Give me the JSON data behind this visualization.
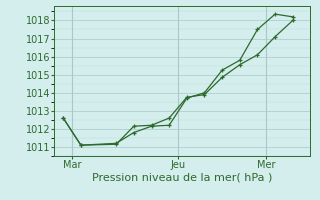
{
  "line1_x": [
    0,
    1,
    3,
    4,
    5,
    6,
    7,
    8,
    9,
    10,
    11,
    12,
    13
  ],
  "line1_y": [
    1012.6,
    1011.1,
    1011.2,
    1011.8,
    1012.15,
    1012.2,
    1013.7,
    1014.0,
    1015.25,
    1015.8,
    1017.5,
    1018.35,
    1018.2
  ],
  "line2_x": [
    0,
    1,
    3,
    4,
    5,
    6,
    7,
    8,
    9,
    10,
    11,
    12,
    13
  ],
  "line2_y": [
    1012.6,
    1011.1,
    1011.15,
    1012.15,
    1012.2,
    1012.6,
    1013.75,
    1013.9,
    1014.85,
    1015.55,
    1016.1,
    1017.1,
    1018.0
  ],
  "color": "#2d6a2d",
  "bg_color": "#d4eded",
  "grid_color_major": "#aac8c8",
  "grid_color_minor": "#c0dcdc",
  "xlabel": "Pression niveau de la mer( hPa )",
  "xlim": [
    -0.5,
    14
  ],
  "ylim": [
    1010.5,
    1018.8
  ],
  "yticks": [
    1011,
    1012,
    1013,
    1014,
    1015,
    1016,
    1017,
    1018
  ],
  "xtick_labels": [
    "Mar",
    "Jeu",
    "Mer"
  ],
  "xtick_positions": [
    0.5,
    6.5,
    11.5
  ],
  "vline_positions": [
    0.5,
    6.5,
    11.5
  ],
  "fontsize": 7,
  "xlabel_fontsize": 8
}
